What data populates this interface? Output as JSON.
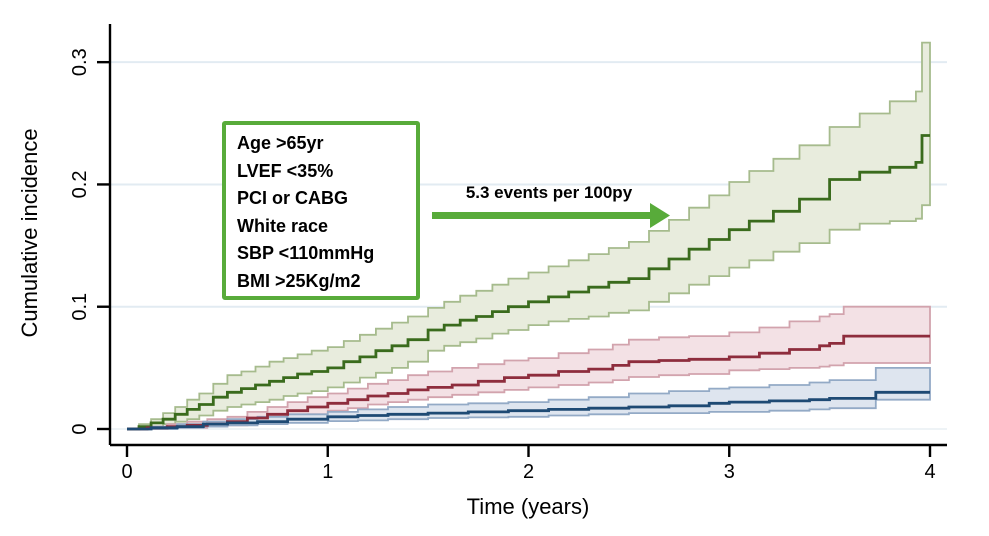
{
  "figure": {
    "y_axis": {
      "title": "Cumulative incidence",
      "ticks": [
        0,
        0.1,
        0.2,
        0.3
      ],
      "tick_labels": [
        "0",
        "0.1",
        "0.2",
        "0.3"
      ]
    },
    "x_axis": {
      "title": "Time (years)",
      "ticks": [
        0,
        1,
        2,
        3,
        4
      ],
      "tick_labels": [
        "0",
        "1",
        "2",
        "3",
        "4"
      ]
    },
    "annotation_box": {
      "border_color": "#58ab3a",
      "lines": [
        "Age >65yr",
        "LVEF <35%",
        "PCI or CABG",
        "White race",
        "SBP <110mmHg",
        "BMI >25Kg/m2"
      ]
    },
    "arrow_annotation": {
      "label": "5.3 events per 100py",
      "color": "#58ab3a"
    },
    "colors": {
      "gridline": "#e2ebf2",
      "zero_line": "#eef3f6",
      "axis": "#000000",
      "text": "#000000"
    }
  },
  "chart_data": {
    "type": "line",
    "subtype": "step-function cumulative incidence curves with shaded 95% CI bands",
    "title": "",
    "xlabel": "Time (years)",
    "ylabel": "Cumulative incidence",
    "xlim": [
      0,
      4
    ],
    "ylim": [
      0,
      0.33
    ],
    "grid": true,
    "legend": "none",
    "point_format": [
      "time_years",
      "cumulative_incidence",
      "ci_lower",
      "ci_upper"
    ],
    "series": [
      {
        "id": "green-high-rate-curve",
        "line_color": "#3a6b1d",
        "band_edge_color": "#a6bb8d",
        "band_fill_color": "#e8ecdd",
        "annotation": "5.3 events per 100py",
        "points": [
          [
            0,
            0,
            0,
            0
          ],
          [
            0.06,
            0.002,
            0.001,
            0.004
          ],
          [
            0.12,
            0.005,
            0.002,
            0.008
          ],
          [
            0.18,
            0.008,
            0.004,
            0.013
          ],
          [
            0.24,
            0.012,
            0.006,
            0.018
          ],
          [
            0.3,
            0.016,
            0.008,
            0.024
          ],
          [
            0.36,
            0.02,
            0.011,
            0.029
          ],
          [
            0.43,
            0.026,
            0.015,
            0.037
          ],
          [
            0.5,
            0.03,
            0.018,
            0.044
          ],
          [
            0.57,
            0.033,
            0.02,
            0.047
          ],
          [
            0.64,
            0.036,
            0.022,
            0.051
          ],
          [
            0.71,
            0.039,
            0.024,
            0.055
          ],
          [
            0.78,
            0.042,
            0.027,
            0.058
          ],
          [
            0.85,
            0.045,
            0.029,
            0.061
          ],
          [
            0.92,
            0.047,
            0.031,
            0.064
          ],
          [
            1.0,
            0.05,
            0.034,
            0.067
          ],
          [
            1.08,
            0.055,
            0.038,
            0.072
          ],
          [
            1.16,
            0.059,
            0.042,
            0.077
          ],
          [
            1.24,
            0.064,
            0.046,
            0.082
          ],
          [
            1.32,
            0.068,
            0.05,
            0.087
          ],
          [
            1.4,
            0.073,
            0.055,
            0.092
          ],
          [
            1.5,
            0.081,
            0.064,
            0.099
          ],
          [
            1.58,
            0.085,
            0.068,
            0.104
          ],
          [
            1.66,
            0.089,
            0.071,
            0.109
          ],
          [
            1.74,
            0.092,
            0.074,
            0.113
          ],
          [
            1.82,
            0.096,
            0.078,
            0.118
          ],
          [
            1.9,
            0.1,
            0.081,
            0.123
          ],
          [
            2.0,
            0.104,
            0.085,
            0.128
          ],
          [
            2.1,
            0.108,
            0.088,
            0.133
          ],
          [
            2.2,
            0.112,
            0.09,
            0.138
          ],
          [
            2.3,
            0.116,
            0.092,
            0.143
          ],
          [
            2.4,
            0.12,
            0.095,
            0.148
          ],
          [
            2.5,
            0.123,
            0.097,
            0.153
          ],
          [
            2.6,
            0.131,
            0.104,
            0.162
          ],
          [
            2.7,
            0.139,
            0.111,
            0.171
          ],
          [
            2.8,
            0.147,
            0.118,
            0.181
          ],
          [
            2.9,
            0.155,
            0.125,
            0.191
          ],
          [
            3.0,
            0.163,
            0.132,
            0.202
          ],
          [
            3.1,
            0.17,
            0.138,
            0.211
          ],
          [
            3.22,
            0.178,
            0.145,
            0.221
          ],
          [
            3.35,
            0.188,
            0.152,
            0.232
          ],
          [
            3.5,
            0.204,
            0.163,
            0.247
          ],
          [
            3.65,
            0.21,
            0.168,
            0.258
          ],
          [
            3.8,
            0.214,
            0.17,
            0.268
          ],
          [
            3.93,
            0.218,
            0.172,
            0.276
          ],
          [
            3.96,
            0.24,
            0.183,
            0.316
          ],
          [
            4.0,
            0.24,
            0.183,
            0.316
          ]
        ]
      },
      {
        "id": "maroon-middle-rate-curve",
        "line_color": "#8e2d3d",
        "band_edge_color": "#d2a3ad",
        "band_fill_color": "#f3e1e5",
        "points": [
          [
            0,
            0,
            0,
            0
          ],
          [
            0.1,
            0.001,
            0.0,
            0.002
          ],
          [
            0.2,
            0.002,
            0.001,
            0.004
          ],
          [
            0.3,
            0.003,
            0.001,
            0.006
          ],
          [
            0.4,
            0.004,
            0.002,
            0.008
          ],
          [
            0.5,
            0.006,
            0.003,
            0.01
          ],
          [
            0.6,
            0.009,
            0.005,
            0.014
          ],
          [
            0.7,
            0.012,
            0.007,
            0.018
          ],
          [
            0.8,
            0.015,
            0.01,
            0.022
          ],
          [
            0.9,
            0.018,
            0.012,
            0.026
          ],
          [
            1.0,
            0.021,
            0.015,
            0.029
          ],
          [
            1.1,
            0.024,
            0.017,
            0.033
          ],
          [
            1.2,
            0.027,
            0.02,
            0.037
          ],
          [
            1.3,
            0.029,
            0.022,
            0.04
          ],
          [
            1.4,
            0.032,
            0.024,
            0.044
          ],
          [
            1.5,
            0.034,
            0.026,
            0.047
          ],
          [
            1.62,
            0.036,
            0.028,
            0.05
          ],
          [
            1.75,
            0.039,
            0.03,
            0.053
          ],
          [
            1.88,
            0.042,
            0.032,
            0.056
          ],
          [
            2.0,
            0.044,
            0.034,
            0.058
          ],
          [
            2.15,
            0.047,
            0.036,
            0.062
          ],
          [
            2.3,
            0.049,
            0.038,
            0.065
          ],
          [
            2.42,
            0.052,
            0.04,
            0.069
          ],
          [
            2.5,
            0.055,
            0.0425,
            0.073
          ],
          [
            2.65,
            0.056,
            0.044,
            0.075
          ],
          [
            2.8,
            0.057,
            0.045,
            0.076
          ],
          [
            3.0,
            0.059,
            0.048,
            0.079
          ],
          [
            3.15,
            0.062,
            0.049,
            0.083
          ],
          [
            3.3,
            0.065,
            0.05,
            0.088
          ],
          [
            3.45,
            0.068,
            0.051,
            0.092
          ],
          [
            3.5,
            0.07,
            0.052,
            0.094
          ],
          [
            3.57,
            0.076,
            0.054,
            0.1
          ],
          [
            4.0,
            0.076,
            0.054,
            0.1
          ]
        ]
      },
      {
        "id": "blue-low-rate-curve",
        "line_color": "#1e4a74",
        "band_edge_color": "#93aac6",
        "band_fill_color": "#dee5ef",
        "points": [
          [
            0,
            0,
            0,
            0
          ],
          [
            0.12,
            0.001,
            0.0,
            0.002
          ],
          [
            0.25,
            0.002,
            0.001,
            0.004
          ],
          [
            0.38,
            0.004,
            0.002,
            0.006
          ],
          [
            0.5,
            0.005,
            0.003,
            0.008
          ],
          [
            0.65,
            0.006,
            0.004,
            0.01
          ],
          [
            0.8,
            0.008,
            0.005,
            0.012
          ],
          [
            1.0,
            0.01,
            0.0065,
            0.014
          ],
          [
            1.15,
            0.011,
            0.007,
            0.016
          ],
          [
            1.3,
            0.012,
            0.008,
            0.018
          ],
          [
            1.5,
            0.013,
            0.009,
            0.02
          ],
          [
            1.7,
            0.014,
            0.0095,
            0.021
          ],
          [
            1.9,
            0.015,
            0.01,
            0.022
          ],
          [
            2.1,
            0.016,
            0.011,
            0.024
          ],
          [
            2.3,
            0.017,
            0.012,
            0.026
          ],
          [
            2.5,
            0.018,
            0.013,
            0.029
          ],
          [
            2.7,
            0.019,
            0.013,
            0.031
          ],
          [
            2.9,
            0.021,
            0.014,
            0.033
          ],
          [
            3.0,
            0.022,
            0.014,
            0.034
          ],
          [
            3.2,
            0.023,
            0.015,
            0.036
          ],
          [
            3.4,
            0.024,
            0.016,
            0.038
          ],
          [
            3.5,
            0.025,
            0.017,
            0.04
          ],
          [
            3.73,
            0.03,
            0.024,
            0.05
          ],
          [
            4.0,
            0.03,
            0.024,
            0.05
          ]
        ]
      }
    ]
  }
}
